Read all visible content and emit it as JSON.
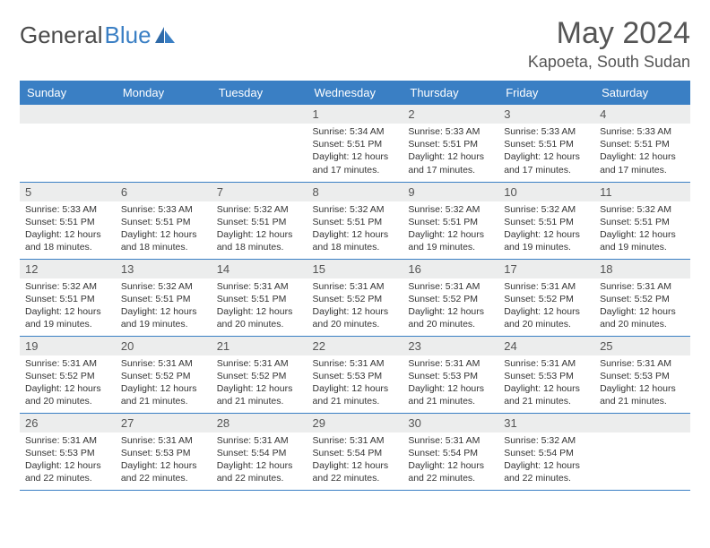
{
  "brand": {
    "name1": "General",
    "name2": "Blue"
  },
  "title": "May 2024",
  "location": "Kapoeta, South Sudan",
  "colors": {
    "header_bg": "#3a7fc4",
    "header_text": "#ffffff",
    "daynum_bg": "#eceded",
    "border": "#3a7fc4",
    "text": "#333333",
    "title_text": "#555555"
  },
  "fonts": {
    "title_size_pt": 26,
    "location_size_pt": 14,
    "weekday_size_pt": 10,
    "daynum_size_pt": 10,
    "body_size_pt": 8
  },
  "weekdays": [
    "Sunday",
    "Monday",
    "Tuesday",
    "Wednesday",
    "Thursday",
    "Friday",
    "Saturday"
  ],
  "grid": [
    [
      null,
      null,
      null,
      {
        "n": "1",
        "sr": "Sunrise: 5:34 AM",
        "ss": "Sunset: 5:51 PM",
        "d1": "Daylight: 12 hours",
        "d2": "and 17 minutes."
      },
      {
        "n": "2",
        "sr": "Sunrise: 5:33 AM",
        "ss": "Sunset: 5:51 PM",
        "d1": "Daylight: 12 hours",
        "d2": "and 17 minutes."
      },
      {
        "n": "3",
        "sr": "Sunrise: 5:33 AM",
        "ss": "Sunset: 5:51 PM",
        "d1": "Daylight: 12 hours",
        "d2": "and 17 minutes."
      },
      {
        "n": "4",
        "sr": "Sunrise: 5:33 AM",
        "ss": "Sunset: 5:51 PM",
        "d1": "Daylight: 12 hours",
        "d2": "and 17 minutes."
      }
    ],
    [
      {
        "n": "5",
        "sr": "Sunrise: 5:33 AM",
        "ss": "Sunset: 5:51 PM",
        "d1": "Daylight: 12 hours",
        "d2": "and 18 minutes."
      },
      {
        "n": "6",
        "sr": "Sunrise: 5:33 AM",
        "ss": "Sunset: 5:51 PM",
        "d1": "Daylight: 12 hours",
        "d2": "and 18 minutes."
      },
      {
        "n": "7",
        "sr": "Sunrise: 5:32 AM",
        "ss": "Sunset: 5:51 PM",
        "d1": "Daylight: 12 hours",
        "d2": "and 18 minutes."
      },
      {
        "n": "8",
        "sr": "Sunrise: 5:32 AM",
        "ss": "Sunset: 5:51 PM",
        "d1": "Daylight: 12 hours",
        "d2": "and 18 minutes."
      },
      {
        "n": "9",
        "sr": "Sunrise: 5:32 AM",
        "ss": "Sunset: 5:51 PM",
        "d1": "Daylight: 12 hours",
        "d2": "and 19 minutes."
      },
      {
        "n": "10",
        "sr": "Sunrise: 5:32 AM",
        "ss": "Sunset: 5:51 PM",
        "d1": "Daylight: 12 hours",
        "d2": "and 19 minutes."
      },
      {
        "n": "11",
        "sr": "Sunrise: 5:32 AM",
        "ss": "Sunset: 5:51 PM",
        "d1": "Daylight: 12 hours",
        "d2": "and 19 minutes."
      }
    ],
    [
      {
        "n": "12",
        "sr": "Sunrise: 5:32 AM",
        "ss": "Sunset: 5:51 PM",
        "d1": "Daylight: 12 hours",
        "d2": "and 19 minutes."
      },
      {
        "n": "13",
        "sr": "Sunrise: 5:32 AM",
        "ss": "Sunset: 5:51 PM",
        "d1": "Daylight: 12 hours",
        "d2": "and 19 minutes."
      },
      {
        "n": "14",
        "sr": "Sunrise: 5:31 AM",
        "ss": "Sunset: 5:51 PM",
        "d1": "Daylight: 12 hours",
        "d2": "and 20 minutes."
      },
      {
        "n": "15",
        "sr": "Sunrise: 5:31 AM",
        "ss": "Sunset: 5:52 PM",
        "d1": "Daylight: 12 hours",
        "d2": "and 20 minutes."
      },
      {
        "n": "16",
        "sr": "Sunrise: 5:31 AM",
        "ss": "Sunset: 5:52 PM",
        "d1": "Daylight: 12 hours",
        "d2": "and 20 minutes."
      },
      {
        "n": "17",
        "sr": "Sunrise: 5:31 AM",
        "ss": "Sunset: 5:52 PM",
        "d1": "Daylight: 12 hours",
        "d2": "and 20 minutes."
      },
      {
        "n": "18",
        "sr": "Sunrise: 5:31 AM",
        "ss": "Sunset: 5:52 PM",
        "d1": "Daylight: 12 hours",
        "d2": "and 20 minutes."
      }
    ],
    [
      {
        "n": "19",
        "sr": "Sunrise: 5:31 AM",
        "ss": "Sunset: 5:52 PM",
        "d1": "Daylight: 12 hours",
        "d2": "and 20 minutes."
      },
      {
        "n": "20",
        "sr": "Sunrise: 5:31 AM",
        "ss": "Sunset: 5:52 PM",
        "d1": "Daylight: 12 hours",
        "d2": "and 21 minutes."
      },
      {
        "n": "21",
        "sr": "Sunrise: 5:31 AM",
        "ss": "Sunset: 5:52 PM",
        "d1": "Daylight: 12 hours",
        "d2": "and 21 minutes."
      },
      {
        "n": "22",
        "sr": "Sunrise: 5:31 AM",
        "ss": "Sunset: 5:53 PM",
        "d1": "Daylight: 12 hours",
        "d2": "and 21 minutes."
      },
      {
        "n": "23",
        "sr": "Sunrise: 5:31 AM",
        "ss": "Sunset: 5:53 PM",
        "d1": "Daylight: 12 hours",
        "d2": "and 21 minutes."
      },
      {
        "n": "24",
        "sr": "Sunrise: 5:31 AM",
        "ss": "Sunset: 5:53 PM",
        "d1": "Daylight: 12 hours",
        "d2": "and 21 minutes."
      },
      {
        "n": "25",
        "sr": "Sunrise: 5:31 AM",
        "ss": "Sunset: 5:53 PM",
        "d1": "Daylight: 12 hours",
        "d2": "and 21 minutes."
      }
    ],
    [
      {
        "n": "26",
        "sr": "Sunrise: 5:31 AM",
        "ss": "Sunset: 5:53 PM",
        "d1": "Daylight: 12 hours",
        "d2": "and 22 minutes."
      },
      {
        "n": "27",
        "sr": "Sunrise: 5:31 AM",
        "ss": "Sunset: 5:53 PM",
        "d1": "Daylight: 12 hours",
        "d2": "and 22 minutes."
      },
      {
        "n": "28",
        "sr": "Sunrise: 5:31 AM",
        "ss": "Sunset: 5:54 PM",
        "d1": "Daylight: 12 hours",
        "d2": "and 22 minutes."
      },
      {
        "n": "29",
        "sr": "Sunrise: 5:31 AM",
        "ss": "Sunset: 5:54 PM",
        "d1": "Daylight: 12 hours",
        "d2": "and 22 minutes."
      },
      {
        "n": "30",
        "sr": "Sunrise: 5:31 AM",
        "ss": "Sunset: 5:54 PM",
        "d1": "Daylight: 12 hours",
        "d2": "and 22 minutes."
      },
      {
        "n": "31",
        "sr": "Sunrise: 5:32 AM",
        "ss": "Sunset: 5:54 PM",
        "d1": "Daylight: 12 hours",
        "d2": "and 22 minutes."
      },
      null
    ]
  ]
}
